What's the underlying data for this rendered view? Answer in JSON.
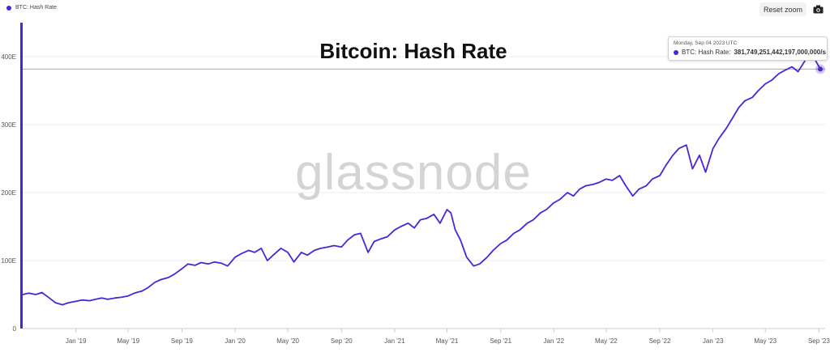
{
  "chart_data": {
    "type": "line",
    "title": "Bitcoin: Hash Rate",
    "watermark": "glassnode",
    "series_name": "BTC: Hash Rate",
    "xlabel": "",
    "ylabel": "",
    "ylim": [
      0,
      450
    ],
    "y_ticks": [
      {
        "value": 0,
        "label": "0"
      },
      {
        "value": 100,
        "label": "100E"
      },
      {
        "value": 200,
        "label": "200E"
      },
      {
        "value": 300,
        "label": "300E"
      },
      {
        "value": 400,
        "label": "400E"
      }
    ],
    "x_ticks": [
      {
        "date": "2019-01-01",
        "label": "Jan '19"
      },
      {
        "date": "2019-05-01",
        "label": "May '19"
      },
      {
        "date": "2019-09-01",
        "label": "Sep '19"
      },
      {
        "date": "2020-01-01",
        "label": "Jan '20"
      },
      {
        "date": "2020-05-01",
        "label": "May '20"
      },
      {
        "date": "2020-09-01",
        "label": "Sep '20"
      },
      {
        "date": "2021-01-01",
        "label": "Jan '21"
      },
      {
        "date": "2021-05-01",
        "label": "May '21"
      },
      {
        "date": "2021-09-01",
        "label": "Sep '21"
      },
      {
        "date": "2022-01-01",
        "label": "Jan '22"
      },
      {
        "date": "2022-05-01",
        "label": "May '22"
      },
      {
        "date": "2022-09-01",
        "label": "Sep '22"
      },
      {
        "date": "2023-01-01",
        "label": "Jan '23"
      },
      {
        "date": "2023-05-01",
        "label": "May '23"
      },
      {
        "date": "2023-09-01",
        "label": "Sep '23"
      }
    ],
    "x_range": [
      "2018-09-01",
      "2023-09-04"
    ],
    "grid": true,
    "legend": "top-left",
    "color": "#4b24d9",
    "points": [
      [
        "2018-09-01",
        50
      ],
      [
        "2018-09-15",
        52
      ],
      [
        "2018-10-01",
        50
      ],
      [
        "2018-10-15",
        53
      ],
      [
        "2018-11-01",
        45
      ],
      [
        "2018-11-15",
        38
      ],
      [
        "2018-12-01",
        35
      ],
      [
        "2018-12-15",
        38
      ],
      [
        "2019-01-01",
        40
      ],
      [
        "2019-01-15",
        42
      ],
      [
        "2019-02-01",
        41
      ],
      [
        "2019-02-15",
        43
      ],
      [
        "2019-03-01",
        45
      ],
      [
        "2019-03-15",
        43
      ],
      [
        "2019-04-01",
        45
      ],
      [
        "2019-04-15",
        46
      ],
      [
        "2019-05-01",
        48
      ],
      [
        "2019-05-15",
        52
      ],
      [
        "2019-06-01",
        55
      ],
      [
        "2019-06-15",
        60
      ],
      [
        "2019-07-01",
        68
      ],
      [
        "2019-07-15",
        72
      ],
      [
        "2019-08-01",
        75
      ],
      [
        "2019-08-15",
        80
      ],
      [
        "2019-09-01",
        88
      ],
      [
        "2019-09-15",
        95
      ],
      [
        "2019-10-01",
        93
      ],
      [
        "2019-10-15",
        97
      ],
      [
        "2019-11-01",
        95
      ],
      [
        "2019-11-15",
        98
      ],
      [
        "2019-12-01",
        96
      ],
      [
        "2019-12-15",
        92
      ],
      [
        "2020-01-01",
        105
      ],
      [
        "2020-01-15",
        110
      ],
      [
        "2020-02-01",
        115
      ],
      [
        "2020-02-15",
        112
      ],
      [
        "2020-03-01",
        118
      ],
      [
        "2020-03-15",
        100
      ],
      [
        "2020-04-01",
        110
      ],
      [
        "2020-04-15",
        118
      ],
      [
        "2020-05-01",
        112
      ],
      [
        "2020-05-15",
        98
      ],
      [
        "2020-06-01",
        112
      ],
      [
        "2020-06-15",
        108
      ],
      [
        "2020-07-01",
        115
      ],
      [
        "2020-07-15",
        118
      ],
      [
        "2020-08-01",
        120
      ],
      [
        "2020-08-15",
        122
      ],
      [
        "2020-09-01",
        120
      ],
      [
        "2020-09-15",
        130
      ],
      [
        "2020-10-01",
        138
      ],
      [
        "2020-10-15",
        140
      ],
      [
        "2020-11-01",
        112
      ],
      [
        "2020-11-15",
        128
      ],
      [
        "2020-12-01",
        132
      ],
      [
        "2020-12-15",
        135
      ],
      [
        "2021-01-01",
        145
      ],
      [
        "2021-01-15",
        150
      ],
      [
        "2021-02-01",
        155
      ],
      [
        "2021-02-15",
        148
      ],
      [
        "2021-03-01",
        160
      ],
      [
        "2021-03-15",
        162
      ],
      [
        "2021-04-01",
        168
      ],
      [
        "2021-04-15",
        155
      ],
      [
        "2021-05-01",
        175
      ],
      [
        "2021-05-10",
        170
      ],
      [
        "2021-05-20",
        145
      ],
      [
        "2021-06-01",
        130
      ],
      [
        "2021-06-15",
        105
      ],
      [
        "2021-07-01",
        92
      ],
      [
        "2021-07-15",
        95
      ],
      [
        "2021-08-01",
        105
      ],
      [
        "2021-08-15",
        115
      ],
      [
        "2021-09-01",
        125
      ],
      [
        "2021-09-15",
        130
      ],
      [
        "2021-10-01",
        140
      ],
      [
        "2021-10-15",
        145
      ],
      [
        "2021-11-01",
        155
      ],
      [
        "2021-11-15",
        160
      ],
      [
        "2021-12-01",
        170
      ],
      [
        "2021-12-15",
        175
      ],
      [
        "2022-01-01",
        185
      ],
      [
        "2022-01-15",
        190
      ],
      [
        "2022-02-01",
        200
      ],
      [
        "2022-02-15",
        195
      ],
      [
        "2022-03-01",
        205
      ],
      [
        "2022-03-15",
        210
      ],
      [
        "2022-04-01",
        212
      ],
      [
        "2022-04-15",
        215
      ],
      [
        "2022-05-01",
        220
      ],
      [
        "2022-05-15",
        218
      ],
      [
        "2022-06-01",
        225
      ],
      [
        "2022-06-15",
        210
      ],
      [
        "2022-07-01",
        195
      ],
      [
        "2022-07-15",
        205
      ],
      [
        "2022-08-01",
        210
      ],
      [
        "2022-08-15",
        220
      ],
      [
        "2022-09-01",
        225
      ],
      [
        "2022-09-15",
        240
      ],
      [
        "2022-10-01",
        255
      ],
      [
        "2022-10-15",
        265
      ],
      [
        "2022-11-01",
        270
      ],
      [
        "2022-11-15",
        235
      ],
      [
        "2022-12-01",
        255
      ],
      [
        "2022-12-15",
        230
      ],
      [
        "2023-01-01",
        265
      ],
      [
        "2023-01-15",
        280
      ],
      [
        "2023-02-01",
        295
      ],
      [
        "2023-02-15",
        310
      ],
      [
        "2023-03-01",
        325
      ],
      [
        "2023-03-15",
        335
      ],
      [
        "2023-04-01",
        340
      ],
      [
        "2023-04-15",
        350
      ],
      [
        "2023-05-01",
        360
      ],
      [
        "2023-05-15",
        365
      ],
      [
        "2023-06-01",
        375
      ],
      [
        "2023-06-15",
        380
      ],
      [
        "2023-07-01",
        385
      ],
      [
        "2023-07-15",
        378
      ],
      [
        "2023-08-01",
        395
      ],
      [
        "2023-08-15",
        405
      ],
      [
        "2023-09-04",
        381.75
      ]
    ]
  },
  "toolbar": {
    "reset_zoom_label": "Reset zoom",
    "export_icon": "camera-icon"
  },
  "tooltip": {
    "date": "Monday, Sep 04 2023 UTC",
    "series_label": "BTC: Hash Rate:",
    "value": "381,749,251,442,197,000,000/s"
  }
}
